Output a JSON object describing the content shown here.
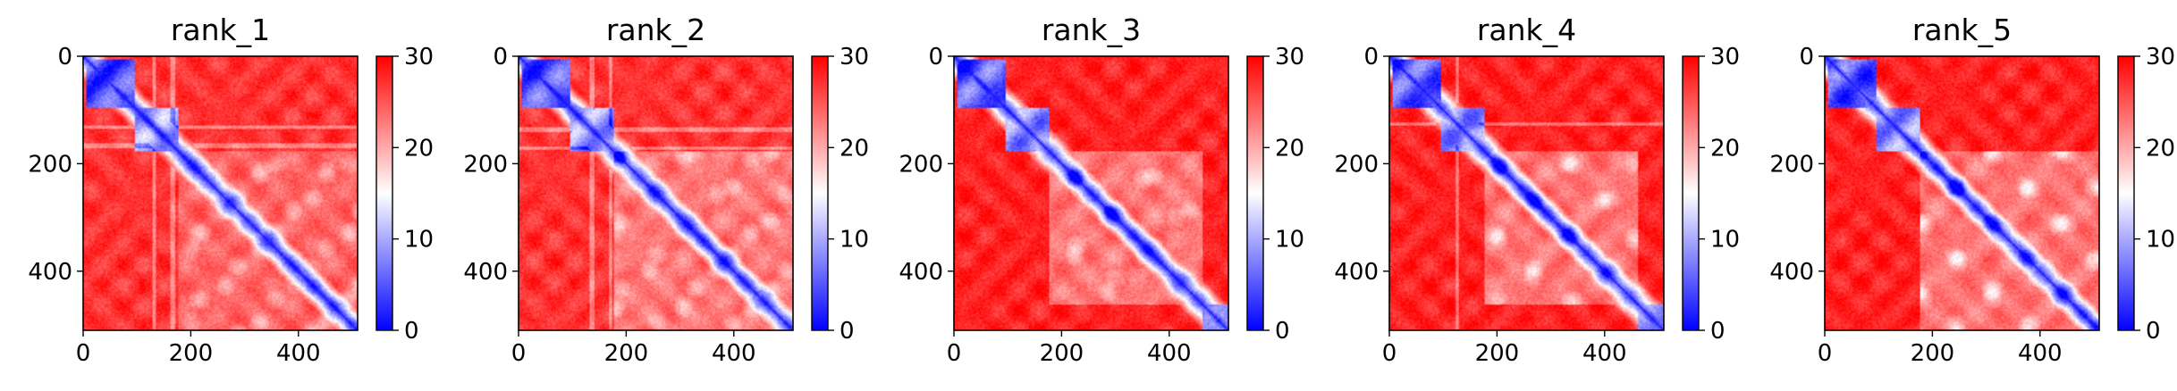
{
  "chart_data": [
    {
      "type": "heatmap",
      "title": "rank_1",
      "xlabel": "",
      "ylabel": "",
      "x_ticks": [
        0,
        200,
        400
      ],
      "y_ticks": [
        0,
        200,
        400
      ],
      "xlim": [
        0,
        510
      ],
      "ylim": [
        510,
        0
      ],
      "matrix_size": 510,
      "colorbar": {
        "range": [
          0,
          30
        ],
        "ticks": [
          0,
          10,
          20,
          30
        ],
        "colormap": "bwr",
        "low_color": "#0000ff",
        "mid_color": "#ffffff",
        "high_color": "#ff0000"
      },
      "domains": [
        {
          "start": 5,
          "end": 95,
          "value": 5
        },
        {
          "start": 95,
          "end": 175,
          "value": 9
        },
        {
          "start": 175,
          "end": 510,
          "value": 24
        }
      ],
      "cross_domain_value": 27,
      "band_lines": [
        130,
        165
      ]
    },
    {
      "type": "heatmap",
      "title": "rank_2",
      "xlabel": "",
      "ylabel": "",
      "x_ticks": [
        0,
        200,
        400
      ],
      "y_ticks": [
        0,
        200,
        400
      ],
      "xlim": [
        0,
        510
      ],
      "ylim": [
        510,
        0
      ],
      "matrix_size": 510,
      "colorbar": {
        "range": [
          0,
          30
        ],
        "ticks": [
          0,
          10,
          20,
          30
        ],
        "colormap": "bwr",
        "low_color": "#0000ff",
        "mid_color": "#ffffff",
        "high_color": "#ff0000"
      },
      "domains": [
        {
          "start": 5,
          "end": 95,
          "value": 5
        },
        {
          "start": 95,
          "end": 175,
          "value": 9
        },
        {
          "start": 175,
          "end": 510,
          "value": 23
        }
      ],
      "cross_domain_value": 27,
      "band_lines": [
        135,
        170
      ]
    },
    {
      "type": "heatmap",
      "title": "rank_3",
      "xlabel": "",
      "ylabel": "",
      "x_ticks": [
        0,
        200,
        400
      ],
      "y_ticks": [
        0,
        200,
        400
      ],
      "xlim": [
        0,
        510
      ],
      "ylim": [
        510,
        0
      ],
      "matrix_size": 510,
      "colorbar": {
        "range": [
          0,
          30
        ],
        "ticks": [
          0,
          10,
          20,
          30
        ],
        "colormap": "bwr",
        "low_color": "#0000ff",
        "mid_color": "#ffffff",
        "high_color": "#ff0000"
      },
      "domains": [
        {
          "start": 5,
          "end": 95,
          "value": 5
        },
        {
          "start": 95,
          "end": 175,
          "value": 9
        },
        {
          "start": 175,
          "end": 460,
          "value": 23
        },
        {
          "start": 460,
          "end": 510,
          "value": 7
        }
      ],
      "cross_domain_value": 28,
      "band_lines": []
    },
    {
      "type": "heatmap",
      "title": "rank_4",
      "xlabel": "",
      "ylabel": "",
      "x_ticks": [
        0,
        200,
        400
      ],
      "y_ticks": [
        0,
        200,
        400
      ],
      "xlim": [
        0,
        510
      ],
      "ylim": [
        510,
        0
      ],
      "matrix_size": 510,
      "colorbar": {
        "range": [
          0,
          30
        ],
        "ticks": [
          0,
          10,
          20,
          30
        ],
        "colormap": "bwr",
        "low_color": "#0000ff",
        "mid_color": "#ffffff",
        "high_color": "#ff0000"
      },
      "domains": [
        {
          "start": 5,
          "end": 95,
          "value": 5
        },
        {
          "start": 95,
          "end": 175,
          "value": 9
        },
        {
          "start": 175,
          "end": 460,
          "value": 23
        },
        {
          "start": 460,
          "end": 510,
          "value": 7
        }
      ],
      "cross_domain_value": 28,
      "band_lines": [
        125
      ]
    },
    {
      "type": "heatmap",
      "title": "rank_5",
      "xlabel": "",
      "ylabel": "",
      "x_ticks": [
        0,
        200,
        400
      ],
      "y_ticks": [
        0,
        200,
        400
      ],
      "xlim": [
        0,
        510
      ],
      "ylim": [
        510,
        0
      ],
      "matrix_size": 510,
      "colorbar": {
        "range": [
          0,
          30
        ],
        "ticks": [
          0,
          10,
          20,
          30
        ],
        "colormap": "bwr",
        "low_color": "#0000ff",
        "mid_color": "#ffffff",
        "high_color": "#ff0000"
      },
      "domains": [
        {
          "start": 5,
          "end": 95,
          "value": 5
        },
        {
          "start": 95,
          "end": 175,
          "value": 9
        },
        {
          "start": 175,
          "end": 510,
          "value": 23
        }
      ],
      "cross_domain_value": 28,
      "band_lines": []
    }
  ]
}
